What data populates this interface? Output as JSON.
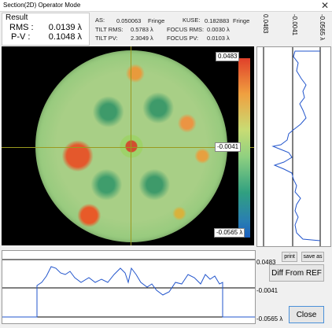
{
  "window": {
    "title": "Section(2D) Operator Mode"
  },
  "result": {
    "label": "Result",
    "rms_label": "RMS :",
    "rms_value": "0.0139 λ",
    "pv_label": "P-V :",
    "pv_value": "0.1048 λ"
  },
  "metrics": {
    "as_label": "AS:",
    "as_value": "0.050063",
    "as_unit": "Fringe",
    "kuse_label": "KUSE:",
    "kuse_value": "0.182883",
    "kuse_unit": "Fringe",
    "tilt_rms_label": "TILT RMS:",
    "tilt_rms_value": "0.5783 λ",
    "focus_rms_label": "FOCUS RMS:",
    "focus_rms_value": "0.0030 λ",
    "tilt_pv_label": "TILT PV:",
    "tilt_pv_value": "2.3049 λ",
    "focus_pv_label": "FOCUS PV:",
    "focus_pv_value": "0.0103 λ"
  },
  "colorbar": {
    "max": "0.0483",
    "mid": "-0.0041",
    "min": "-0.0565 λ",
    "colors": [
      "#e0402a",
      "#f0a040",
      "#c8dc74",
      "#8fd080",
      "#30a080",
      "#2a80b0",
      "#1a60c0"
    ]
  },
  "right_profile": {
    "top_labels": [
      "0.0483",
      "-0.0041",
      "-0.0565 λ"
    ],
    "profile_color": "#2255cc"
  },
  "bottom_profile": {
    "labels": [
      "0.0483",
      "-0.0041",
      "-0.0565 λ"
    ],
    "profile_color": "#2255cc"
  },
  "buttons": {
    "print": "print",
    "save_as": "save as",
    "diff_from_ref": "Diff From REF",
    "close": "Close"
  },
  "icons": {
    "window_close": "close-icon"
  }
}
